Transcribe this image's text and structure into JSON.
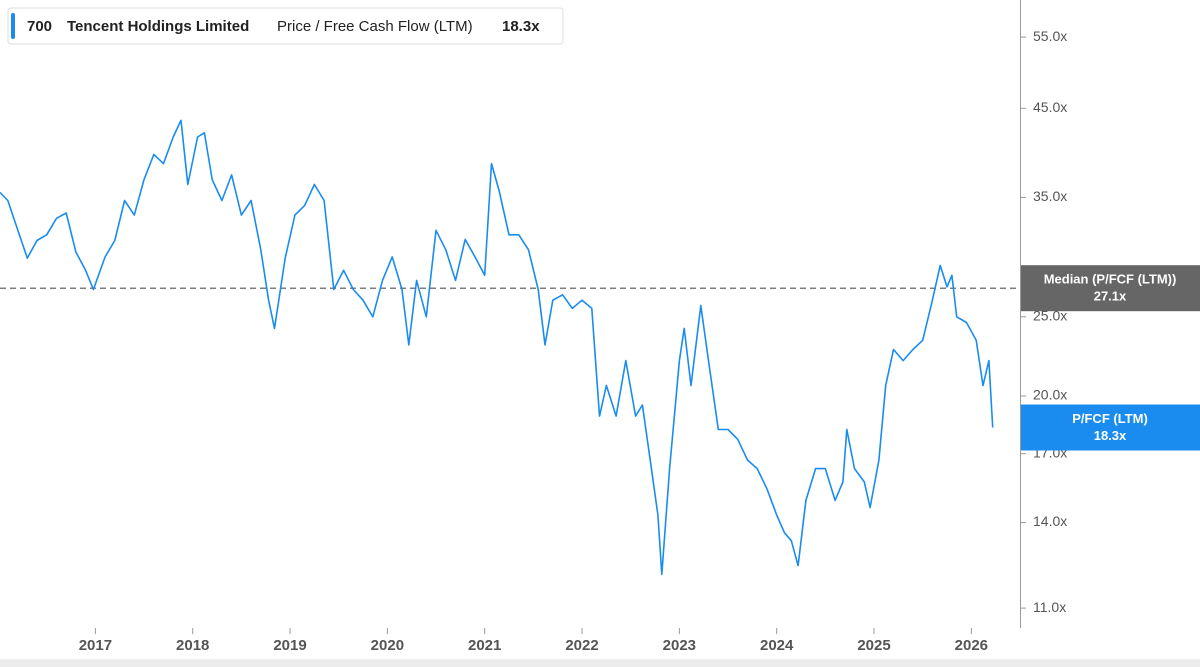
{
  "chart_data": {
    "type": "line",
    "header": {
      "ticker": "700",
      "company": "Tencent Holdings Limited",
      "metric": "Price / Free Cash Flow (LTM)",
      "value_label": "18.3x"
    },
    "log_scale": true,
    "ylim": [
      10.4,
      61.06
    ],
    "xlim": [
      2016.02,
      2026.5
    ],
    "yticks": [
      {
        "value": 11,
        "label": "11.0x"
      },
      {
        "value": 14,
        "label": "14.0x"
      },
      {
        "value": 17,
        "label": "17.0x"
      },
      {
        "value": 20,
        "label": "20.0x"
      },
      {
        "value": 25,
        "label": "25.0x"
      },
      {
        "value": 35,
        "label": "35.0x"
      },
      {
        "value": 45,
        "label": "45.0x"
      },
      {
        "value": 55,
        "label": "55.0x"
      }
    ],
    "xticks": [
      2017,
      2018,
      2019,
      2020,
      2021,
      2022,
      2023,
      2024,
      2025,
      2026
    ],
    "median": {
      "label": "Median (P/FCF (LTM))",
      "value": 27.1,
      "value_label": "27.1x"
    },
    "last": {
      "label": "P/FCF (LTM)",
      "value_label": "18.3x"
    },
    "series": [
      {
        "name": "P/FCF (LTM)",
        "color": "#1a8cf0",
        "x": [
          2016.02,
          2016.1,
          2016.2,
          2016.3,
          2016.4,
          2016.5,
          2016.6,
          2016.7,
          2016.8,
          2016.9,
          2016.98,
          2017.1,
          2017.2,
          2017.3,
          2017.4,
          2017.5,
          2017.6,
          2017.7,
          2017.8,
          2017.88,
          2017.95,
          2018.05,
          2018.12,
          2018.2,
          2018.3,
          2018.4,
          2018.5,
          2018.6,
          2018.7,
          2018.78,
          2018.84,
          2018.95,
          2019.05,
          2019.15,
          2019.25,
          2019.35,
          2019.45,
          2019.55,
          2019.65,
          2019.75,
          2019.85,
          2019.95,
          2020.05,
          2020.15,
          2020.22,
          2020.3,
          2020.4,
          2020.5,
          2020.6,
          2020.7,
          2020.8,
          2020.9,
          2021.0,
          2021.07,
          2021.15,
          2021.25,
          2021.35,
          2021.45,
          2021.55,
          2021.62,
          2021.7,
          2021.8,
          2021.9,
          2022.0,
          2022.1,
          2022.18,
          2022.25,
          2022.35,
          2022.45,
          2022.55,
          2022.62,
          2022.7,
          2022.78,
          2022.82,
          2022.9,
          2023.0,
          2023.05,
          2023.12,
          2023.22,
          2023.3,
          2023.4,
          2023.5,
          2023.6,
          2023.7,
          2023.8,
          2023.9,
          2024.0,
          2024.08,
          2024.15,
          2024.22,
          2024.3,
          2024.4,
          2024.5,
          2024.6,
          2024.68,
          2024.72,
          2024.8,
          2024.9,
          2024.96,
          2025.05,
          2025.12,
          2025.2,
          2025.3,
          2025.4,
          2025.5,
          2025.6,
          2025.68,
          2025.75,
          2025.8,
          2025.85,
          2025.95,
          2026.05,
          2026.12,
          2026.18,
          2026.22
        ],
        "values": [
          35.5,
          34.7,
          32,
          29.5,
          31,
          31.5,
          33,
          33.5,
          30,
          28.5,
          27,
          29.6,
          31,
          34.7,
          33.3,
          36.8,
          39.5,
          38.5,
          41.5,
          43.5,
          36.3,
          41.5,
          42,
          36.8,
          34.7,
          37.3,
          33.3,
          34.7,
          30.2,
          26.2,
          24.2,
          29.5,
          33.3,
          34.2,
          36.3,
          34.7,
          27,
          28.5,
          27,
          26.2,
          25,
          27.7,
          29.6,
          27,
          23.1,
          27.7,
          25,
          31.9,
          30.2,
          27.7,
          31.1,
          29.6,
          28.1,
          38.5,
          35.6,
          31.5,
          31.5,
          30.2,
          27,
          23.1,
          26.2,
          26.6,
          25.6,
          26.2,
          25.6,
          18.9,
          20.6,
          18.9,
          22.1,
          18.9,
          19.5,
          16.7,
          14.3,
          12.1,
          16.3,
          22.1,
          24.2,
          20.6,
          25.8,
          22.1,
          18.2,
          18.2,
          17.7,
          16.7,
          16.3,
          15.4,
          14.3,
          13.6,
          13.3,
          12.4,
          14.9,
          16.3,
          16.3,
          14.9,
          15.7,
          18.2,
          16.3,
          15.7,
          14.6,
          16.7,
          20.6,
          22.8,
          22.1,
          22.8,
          23.4,
          26.2,
          28.9,
          27.2,
          28.1,
          25,
          24.6,
          23.4,
          20.6,
          22.1,
          18.3
        ]
      }
    ]
  }
}
